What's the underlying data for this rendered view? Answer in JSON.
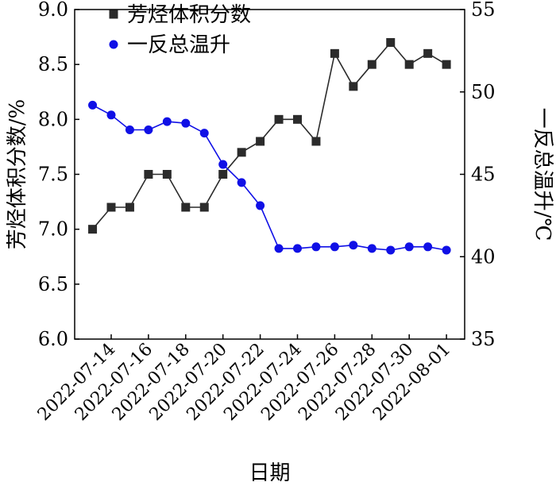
{
  "chart_data": {
    "type": "line",
    "xlabel": "日期",
    "ylabel": "芳烃体积分数/%",
    "y2label": "一反总温升/℃",
    "ylim": [
      6.0,
      9.0
    ],
    "y2lim": [
      35,
      55
    ],
    "yticks": [
      "6.0",
      "6.5",
      "7.0",
      "7.5",
      "8.0",
      "8.5",
      "9.0"
    ],
    "y2ticks": [
      "35",
      "40",
      "45",
      "50",
      "55"
    ],
    "x": [
      "2022-07-13",
      "2022-07-14",
      "2022-07-15",
      "2022-07-16",
      "2022-07-17",
      "2022-07-18",
      "2022-07-19",
      "2022-07-20",
      "2022-07-21",
      "2022-07-22",
      "2022-07-23",
      "2022-07-24",
      "2022-07-25",
      "2022-07-26",
      "2022-07-27",
      "2022-07-28",
      "2022-07-29",
      "2022-07-30",
      "2022-07-31",
      "2022-08-01"
    ],
    "xticks": [
      "2022-07-14",
      "2022-07-16",
      "2022-07-18",
      "2022-07-20",
      "2022-07-22",
      "2022-07-24",
      "2022-07-26",
      "2022-07-28",
      "2022-07-30",
      "2022-08-01"
    ],
    "series": [
      {
        "name": "芳烃体积分数",
        "axis": "left",
        "marker": "square",
        "color": "#2b2b2b",
        "values": [
          7.0,
          7.2,
          7.2,
          7.5,
          7.5,
          7.2,
          7.2,
          7.5,
          7.7,
          7.8,
          8.0,
          8.0,
          7.8,
          8.6,
          8.3,
          8.5,
          8.7,
          8.5,
          8.6,
          8.5
        ]
      },
      {
        "name": "一反总温升",
        "axis": "right",
        "marker": "circle",
        "color": "#1010e6",
        "values": [
          49.2,
          48.6,
          47.7,
          47.7,
          48.2,
          48.1,
          47.5,
          45.6,
          44.5,
          43.1,
          40.5,
          40.5,
          40.6,
          40.6,
          40.7,
          40.5,
          40.4,
          40.6,
          40.6,
          40.4
        ]
      }
    ],
    "legend_position": "top-center"
  }
}
